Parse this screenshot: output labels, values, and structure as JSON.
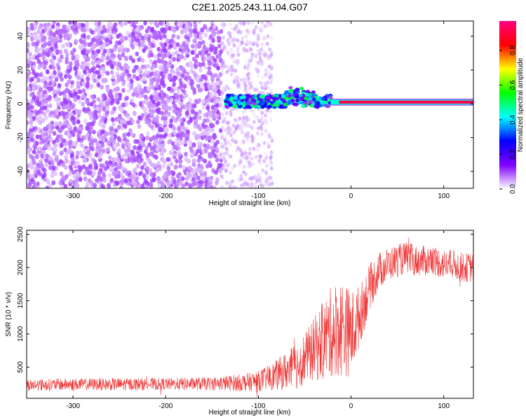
{
  "figure_title": "C2E1.2025.243.11.04.G07",
  "colors": {
    "snr_line": "#ee3333",
    "background": "#ffffff"
  },
  "chart_data": [
    {
      "type": "heatmap",
      "title": "",
      "xlabel": "Height of straight line (km)",
      "ylabel": "Frequency (Hz)",
      "xlim": [
        -350,
        132
      ],
      "ylim": [
        -50,
        49
      ],
      "x_ticks": [
        -300,
        -200,
        -100,
        0,
        100
      ],
      "y_ticks": [
        -40,
        -20,
        0,
        20,
        40
      ],
      "colorbar": {
        "label": "Normalized spectral amplitude",
        "range": [
          0,
          0.97
        ],
        "ticks": [
          0.0,
          0.2,
          0.4,
          0.6,
          0.8
        ],
        "tick_labels": [
          "0.0",
          "0.2",
          "0.4",
          "0.6",
          "0.8"
        ],
        "colormap": [
          "#ffffff",
          "#8000ff",
          "#0000ff",
          "#00ffff",
          "#00ff00",
          "#ffff00",
          "#ff0000",
          "#ff0080"
        ]
      },
      "regions": [
        {
          "name": "noise",
          "x_range": [
            -350,
            -140
          ],
          "amplitude": 0.1
        },
        {
          "name": "noise-fading",
          "x_range": [
            -140,
            -85
          ],
          "amplitude": 0.07
        },
        {
          "name": "signal-onset",
          "x_range": [
            -135,
            -22
          ],
          "frequency_hz": 1.5,
          "amplitude": 0.35
        },
        {
          "name": "signal-strong",
          "x_range": [
            -22,
            132
          ],
          "frequency_hz": 1.0,
          "amplitude": 0.95
        }
      ]
    },
    {
      "type": "line",
      "title": "",
      "xlabel": "Height of straight line (km)",
      "ylabel": "SNR (10 * v/v)",
      "xlim": [
        -350,
        132
      ],
      "ylim": [
        30,
        2560
      ],
      "x_ticks": [
        -300,
        -200,
        -100,
        0,
        100
      ],
      "y_ticks": [
        500,
        1000,
        1500,
        2000,
        2500
      ],
      "series": [
        {
          "name": "SNR",
          "x": [
            -350,
            -300,
            -250,
            -200,
            -150,
            -120,
            -100,
            -80,
            -60,
            -45,
            -30,
            -20,
            -10,
            0,
            10,
            20,
            30,
            40,
            50,
            60,
            70,
            80,
            90,
            100,
            110,
            120,
            132
          ],
          "mean": [
            230,
            240,
            240,
            245,
            250,
            265,
            290,
            380,
            500,
            700,
            900,
            1050,
            1100,
            1000,
            1300,
            1700,
            1950,
            2050,
            2100,
            2150,
            2100,
            2100,
            2100,
            2050,
            2050,
            2000,
            2000
          ],
          "amp": [
            90,
            90,
            95,
            90,
            100,
            130,
            150,
            230,
            350,
            420,
            600,
            700,
            750,
            650,
            450,
            350,
            280,
            250,
            250,
            240,
            230,
            230,
            230,
            220,
            220,
            220,
            220
          ]
        }
      ]
    }
  ]
}
